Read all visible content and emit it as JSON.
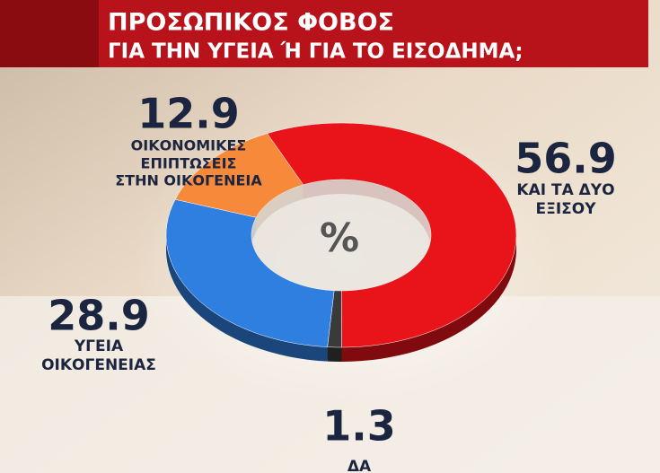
{
  "chart_data": {
    "type": "donut",
    "title": "ΠΡΟΣΩΠΙΚΟΣ ΦΟΒΟΣ",
    "subtitle": "ΓΙΑ ΤΗΝ ΥΓΕΙΑ Ή ΓΙΑ ΤΟ ΕΙΣΟΔΗΜΑ;",
    "center_label": "%",
    "categories": [
      [
        "ΚΑΙ ΤΑ ΔΥΟ",
        "ΕΞΙΣΟΥ"
      ],
      [
        "ΔΑ"
      ],
      [
        "ΥΓΕΙΑ",
        "ΟΙΚΟΓΕΝΕΙΑΣ"
      ],
      [
        "ΟΙΚΟΝΟΜΙΚΕΣ",
        "ΕΠΙΠΤΩΣΕΙΣ",
        "ΣΤΗΝ ΟΙΚΟΓΕΝΕΙΑ"
      ]
    ],
    "values": [
      56.9,
      1.3,
      28.9,
      12.9
    ],
    "colors": [
      "#e8141a",
      "#3a3a3a",
      "#2f7fe0",
      "#f7893a"
    ]
  }
}
